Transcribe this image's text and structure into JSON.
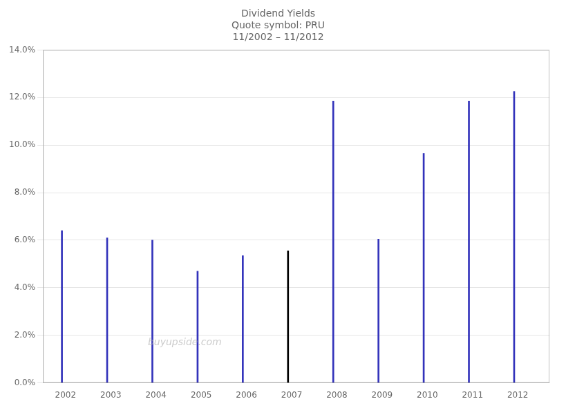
{
  "chart_data": {
    "type": "bar",
    "title": "Dividend Yields\nQuote symbol: PRU\n11/2002 – 11/2012",
    "x": [
      2001.92,
      2002.92,
      2003.92,
      2004.92,
      2005.92,
      2006.92,
      2007.92,
      2008.92,
      2009.92,
      2010.92,
      2011.92
    ],
    "values": [
      6.4,
      6.1,
      6.0,
      4.7,
      5.35,
      5.55,
      11.85,
      6.05,
      9.65,
      11.85,
      12.25
    ],
    "colors": [
      "#3333bb",
      "#3333bb",
      "#3333bb",
      "#3333bb",
      "#3333bb",
      "#000000",
      "#3333bb",
      "#3333bb",
      "#3333bb",
      "#3333bb",
      "#3333bb"
    ],
    "xlim": [
      2001.5,
      2012.7
    ],
    "xticks": [
      2002,
      2003,
      2004,
      2005,
      2006,
      2007,
      2008,
      2009,
      2010,
      2011,
      2012
    ],
    "ylim": [
      0,
      14.0
    ],
    "yticks": [
      {
        "value": 0,
        "label": "0.0%"
      },
      {
        "value": 2.0,
        "label": "2.0%"
      },
      {
        "value": 4.0,
        "label": "4.0%"
      },
      {
        "value": 6.0,
        "label": "6.0%"
      },
      {
        "value": 8.0,
        "label": "8.0%"
      },
      {
        "value": 10.0,
        "label": "10.0%"
      },
      {
        "value": 12.0,
        "label": "12.0%"
      },
      {
        "value": 14.0,
        "label": "14.0%"
      }
    ],
    "grid": "y",
    "annotations": [
      {
        "text": "buyupside.com"
      }
    ]
  }
}
